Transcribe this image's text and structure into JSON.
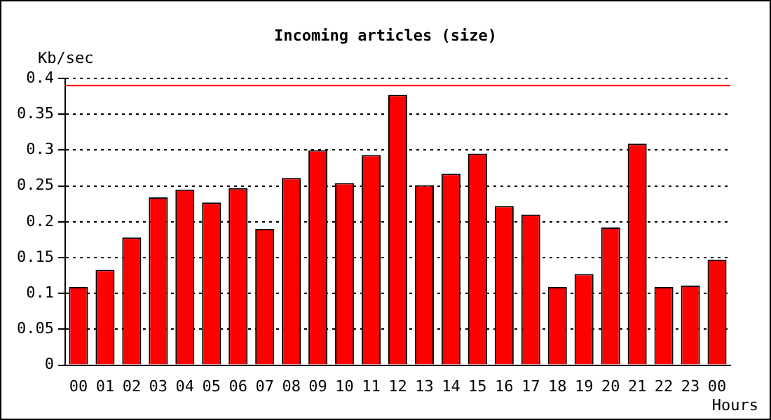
{
  "chart_data": {
    "type": "bar",
    "title": "Incoming articles (size)",
    "xlabel": "Hours",
    "ylabel": "Kb/sec",
    "categories": [
      "00",
      "01",
      "02",
      "03",
      "04",
      "05",
      "06",
      "07",
      "08",
      "09",
      "10",
      "11",
      "12",
      "13",
      "14",
      "15",
      "16",
      "17",
      "18",
      "19",
      "20",
      "21",
      "22",
      "23",
      "00"
    ],
    "values": [
      0.109,
      0.133,
      0.178,
      0.234,
      0.245,
      0.227,
      0.247,
      0.19,
      0.261,
      0.3,
      0.254,
      0.293,
      0.377,
      0.251,
      0.267,
      0.295,
      0.222,
      0.21,
      0.109,
      0.127,
      0.192,
      0.309,
      0.109,
      0.111,
      0.147
    ],
    "color": "#ff0000",
    "ylim": [
      0,
      0.4
    ],
    "yticks": [
      0,
      0.05,
      0.1,
      0.15,
      0.2,
      0.25,
      0.3,
      0.35,
      0.4
    ],
    "ref_lines": [
      {
        "axis": "y",
        "value": 0.39,
        "color": "#ff0000",
        "line_style": "solid"
      }
    ],
    "grid": "y",
    "line_style": "dotted"
  }
}
